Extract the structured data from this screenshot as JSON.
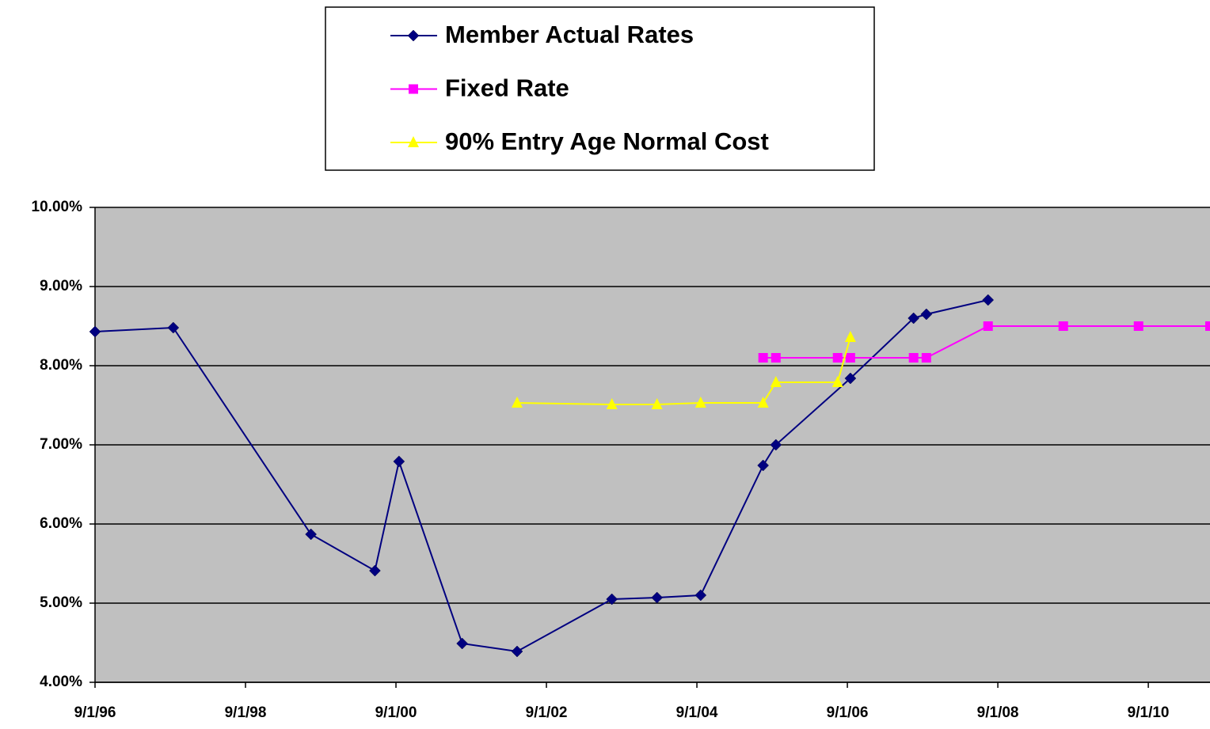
{
  "chart_data": {
    "type": "line",
    "xlim": [
      1996.67,
      2011.49
    ],
    "xticks": [
      {
        "value": 1996.67,
        "label": "9/1/96"
      },
      {
        "value": 1998.67,
        "label": "9/1/98"
      },
      {
        "value": 2000.67,
        "label": "9/1/00"
      },
      {
        "value": 2002.67,
        "label": "9/1/02"
      },
      {
        "value": 2004.67,
        "label": "9/1/04"
      },
      {
        "value": 2006.67,
        "label": "9/1/06"
      },
      {
        "value": 2008.67,
        "label": "9/1/08"
      },
      {
        "value": 2010.67,
        "label": "9/1/10"
      }
    ],
    "ylim": [
      4,
      10
    ],
    "yticks": [
      {
        "value": 4,
        "label": "4.00%"
      },
      {
        "value": 5,
        "label": "5.00%"
      },
      {
        "value": 6,
        "label": "6.00%"
      },
      {
        "value": 7,
        "label": "7.00%"
      },
      {
        "value": 8,
        "label": "8.00%"
      },
      {
        "value": 9,
        "label": "9.00%"
      },
      {
        "value": 10,
        "label": "10.00%"
      }
    ],
    "grid": true,
    "legend": "top",
    "series": [
      {
        "name": "Member Actual Rates",
        "color": "#000080",
        "marker": "diamond",
        "x": [
          1996.67,
          1997.71,
          1999.54,
          2000.39,
          2000.71,
          2001.55,
          2002.28,
          2003.54,
          2004.14,
          2004.72,
          2005.55,
          2005.72,
          2006.71,
          2007.55,
          2007.72,
          2008.54
        ],
        "values": [
          8.43,
          8.48,
          5.87,
          5.41,
          6.79,
          4.49,
          4.39,
          5.05,
          5.07,
          5.1,
          6.74,
          7.0,
          7.84,
          8.6,
          8.65,
          8.83
        ]
      },
      {
        "name": "Fixed Rate",
        "color": "#ff00ff",
        "marker": "square",
        "x": [
          2005.55,
          2005.72,
          2006.54,
          2006.71,
          2007.55,
          2007.72,
          2008.54,
          2009.54,
          2010.54,
          2011.49
        ],
        "values": [
          8.1,
          8.1,
          8.1,
          8.1,
          8.1,
          8.1,
          8.5,
          8.5,
          8.5,
          8.5
        ]
      },
      {
        "name": "90% Entry Age Normal Cost",
        "color": "#ffff00",
        "marker": "triangle",
        "x": [
          2002.28,
          2003.54,
          2004.14,
          2004.72,
          2005.55,
          2005.72,
          2006.54,
          2006.71
        ],
        "values": [
          7.53,
          7.51,
          7.51,
          7.53,
          7.53,
          7.79,
          7.79,
          8.36
        ]
      }
    ]
  }
}
